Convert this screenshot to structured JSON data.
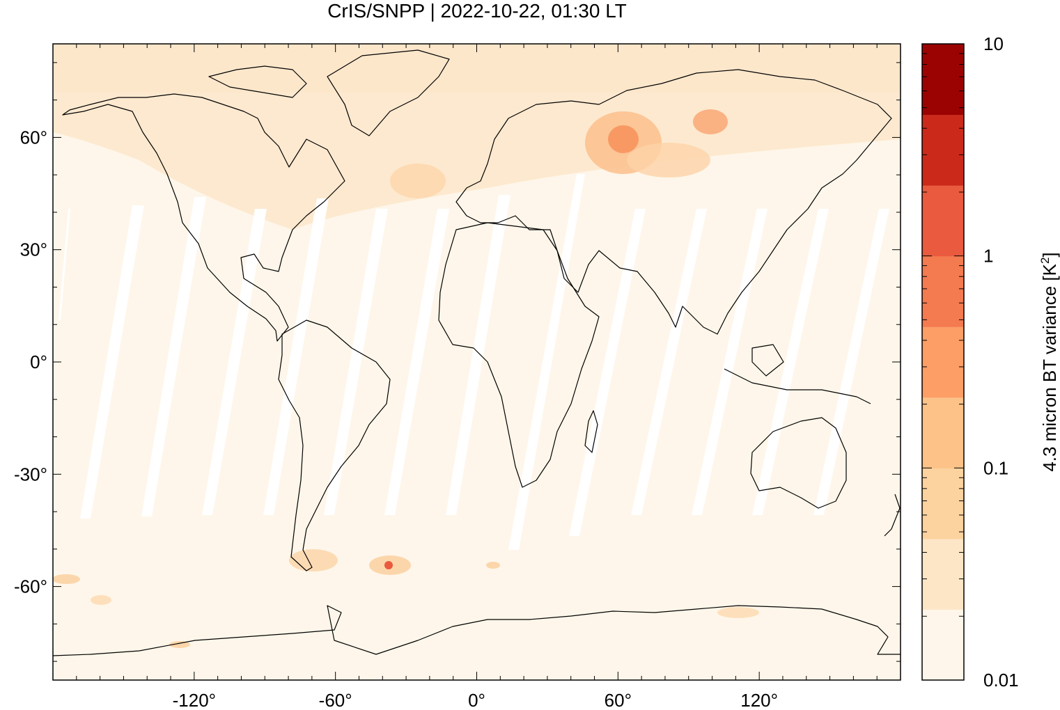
{
  "title": "CrIS/SNPP | 2022-10-22, 01:30 LT",
  "colors": {
    "ocean_fill": "#fef6ea",
    "swath_gap": "#ffffff",
    "coast": "#000000",
    "colorbar": [
      "#fef6ea",
      "#fde6c6",
      "#fcd29e",
      "#fcc288",
      "#fc9e66",
      "#f47a50",
      "#e95a3e",
      "#cb2a1b",
      "#9b0303"
    ]
  },
  "map": {
    "lon_range": [
      -180,
      180
    ],
    "lat_range": [
      -85,
      85
    ],
    "x_ticks": [
      {
        "value": -120,
        "label": "-120°"
      },
      {
        "value": -60,
        "label": "-60°"
      },
      {
        "value": 0,
        "label": "0°"
      },
      {
        "value": 60,
        "label": "60°"
      },
      {
        "value": 120,
        "label": "120°"
      }
    ],
    "y_ticks": [
      {
        "value": 60,
        "label": "60°"
      },
      {
        "value": 30,
        "label": "30°"
      },
      {
        "value": 0,
        "label": "0°"
      },
      {
        "value": -30,
        "label": "-30°"
      },
      {
        "value": -60,
        "label": "-60°"
      }
    ]
  },
  "colorbar": {
    "label_main": "4.3 micron BT variance [K",
    "label_sup": "2",
    "label_end": "]",
    "scale": "log",
    "range": [
      0.01,
      10
    ],
    "ticks": [
      {
        "value": 10,
        "label": "10"
      },
      {
        "value": 1,
        "label": "1"
      },
      {
        "value": 0.1,
        "label": "0.1"
      },
      {
        "value": 0.01,
        "label": "0.01"
      }
    ]
  }
}
